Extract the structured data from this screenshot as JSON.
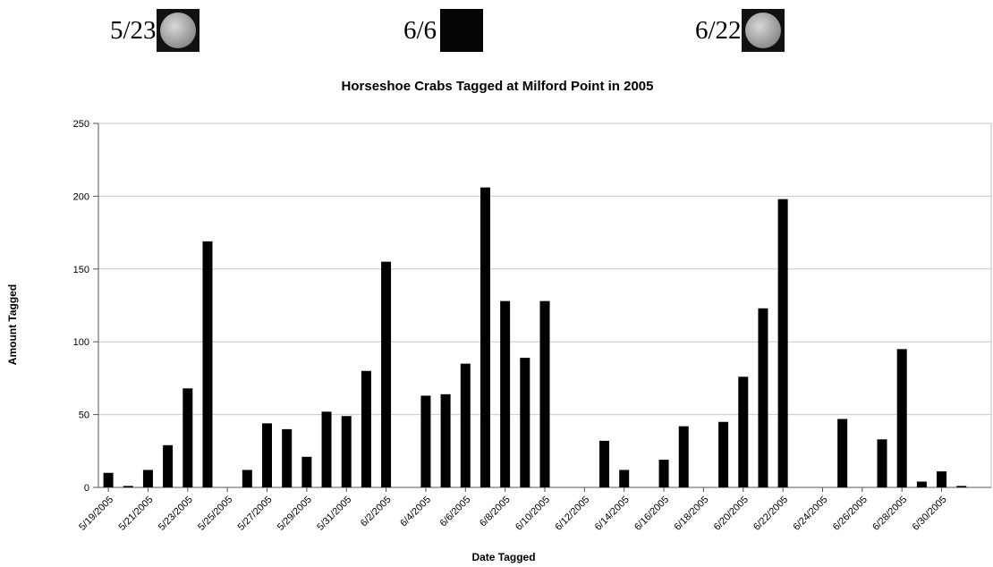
{
  "moon_phases": [
    {
      "date": "5/23",
      "phase_icon": "full-moon-icon"
    },
    {
      "date": "6/6",
      "phase_icon": "new-moon-icon"
    },
    {
      "date": "6/22",
      "phase_icon": "full-moon-icon"
    }
  ],
  "chart_data": {
    "type": "bar",
    "title": "Horseshoe Crabs Tagged at Milford Point in 2005",
    "xlabel": "Date Tagged",
    "ylabel": "Amount Tagged",
    "ylim": [
      0,
      250
    ],
    "yticks": [
      0,
      50,
      100,
      150,
      200,
      250
    ],
    "grid": true,
    "bar_color": "#000000",
    "categories": [
      "5/19/2005",
      "5/20/2005",
      "5/21/2005",
      "5/22/2005",
      "5/23/2005",
      "5/24/2005",
      "5/25/2005",
      "5/26/2005",
      "5/27/2005",
      "5/28/2005",
      "5/29/2005",
      "5/30/2005",
      "5/31/2005",
      "6/1/2005",
      "6/2/2005",
      "6/3/2005",
      "6/4/2005",
      "6/5/2005",
      "6/6/2005",
      "6/7/2005",
      "6/8/2005",
      "6/9/2005",
      "6/10/2005",
      "6/11/2005",
      "6/12/2005",
      "6/13/2005",
      "6/14/2005",
      "6/15/2005",
      "6/16/2005",
      "6/17/2005",
      "6/18/2005",
      "6/19/2005",
      "6/20/2005",
      "6/21/2005",
      "6/22/2005",
      "6/23/2005",
      "6/24/2005",
      "6/25/2005",
      "6/26/2005",
      "6/27/2005",
      "6/28/2005",
      "6/29/2005",
      "6/30/2005",
      "7/1/2005",
      "7/2/2005"
    ],
    "tick_labels": [
      "5/19/2005",
      "5/21/2005",
      "5/23/2005",
      "5/25/2005",
      "5/27/2005",
      "5/29/2005",
      "5/31/2005",
      "6/2/2005",
      "6/4/2005",
      "6/6/2005",
      "6/8/2005",
      "6/10/2005",
      "6/12/2005",
      "6/14/2005",
      "6/16/2005",
      "6/18/2005",
      "6/20/2005",
      "6/22/2005",
      "6/24/2005",
      "6/26/2005",
      "6/28/2005",
      "6/30/2005"
    ],
    "values": [
      10,
      1,
      12,
      29,
      68,
      169,
      0,
      12,
      44,
      40,
      21,
      52,
      49,
      80,
      155,
      0,
      63,
      64,
      85,
      206,
      128,
      89,
      128,
      0,
      0,
      32,
      12,
      0,
      19,
      42,
      0,
      45,
      76,
      123,
      198,
      0,
      0,
      47,
      0,
      33,
      95,
      4,
      11,
      1,
      0
    ]
  }
}
